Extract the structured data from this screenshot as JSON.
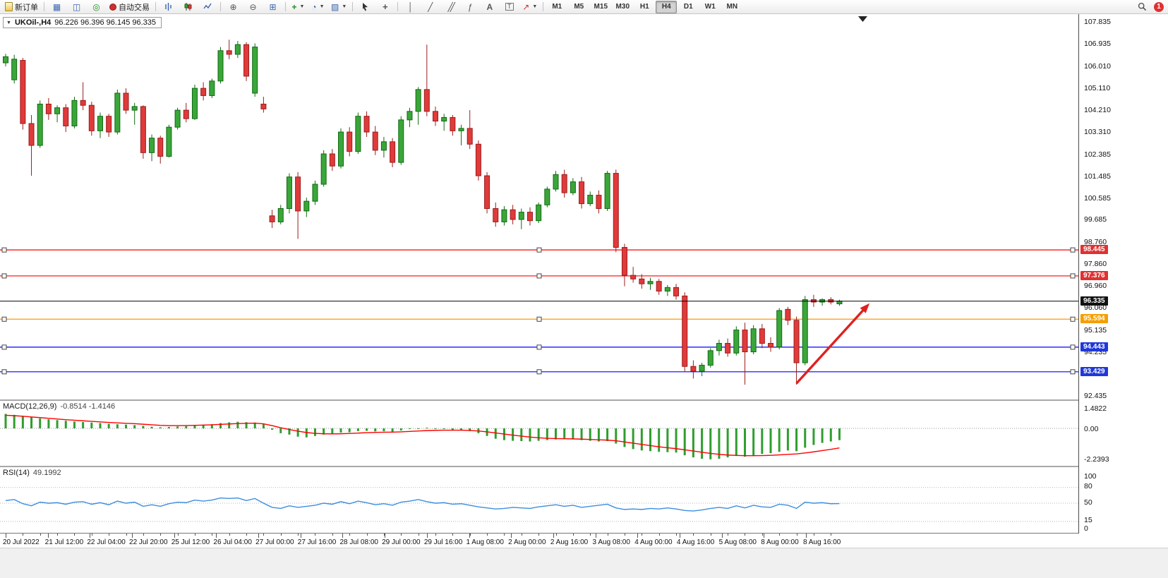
{
  "toolbar": {
    "new_order": "新订单",
    "autotrading": "自动交易",
    "timeframes": [
      "M1",
      "M5",
      "M15",
      "M30",
      "H1",
      "H4",
      "D1",
      "W1",
      "MN"
    ],
    "active_timeframe": "H4",
    "notification_badge": "1"
  },
  "chart_header": {
    "symbol": "UKOil-,H4",
    "ohlc": "96.226 96.396 96.145 96.335"
  },
  "indicators": {
    "macd": {
      "name": "MACD(12,26,9)",
      "values": "-0.8514 -1.4146",
      "axis_ticks": [
        "1.4822",
        "0.00",
        "-2.2393"
      ]
    },
    "rsi": {
      "name": "RSI(14)",
      "value": "49.1992",
      "axis_ticks": [
        "100",
        "80",
        "50",
        "15",
        "0"
      ]
    }
  },
  "price_axis": {
    "ticks": [
      "107.835",
      "106.935",
      "106.010",
      "105.110",
      "104.210",
      "103.310",
      "102.385",
      "101.485",
      "100.585",
      "99.685",
      "98.760",
      "97.860",
      "96.960",
      "96.060",
      "95.135",
      "94.235",
      "93.335",
      "92.435"
    ],
    "badges": [
      {
        "value": "98.445",
        "color": "#e03131"
      },
      {
        "value": "97.376",
        "color": "#e03131"
      },
      {
        "value": "96.335",
        "color": "#111111"
      },
      {
        "value": "95.594",
        "color": "#f59f00"
      },
      {
        "value": "94.443",
        "color": "#2038d8"
      },
      {
        "value": "93.429",
        "color": "#2038d8"
      }
    ]
  },
  "time_axis": [
    "20 Jul 2022",
    "21 Jul 12:00",
    "22 Jul 04:00",
    "22 Jul 20:00",
    "25 Jul 12:00",
    "26 Jul 04:00",
    "27 Jul 00:00",
    "27 Jul 16:00",
    "28 Jul 08:00",
    "29 Jul 00:00",
    "29 Jul 16:00",
    "1 Aug 08:00",
    "2 Aug 00:00",
    "2 Aug 16:00",
    "3 Aug 08:00",
    "4 Aug 00:00",
    "4 Aug 16:00",
    "5 Aug 08:00",
    "8 Aug 00:00",
    "8 Aug 16:00"
  ],
  "chart_data": {
    "type": "candlestick",
    "symbol": "UKOil-",
    "timeframe": "H4",
    "ohlc_display": {
      "open": 96.226,
      "high": 96.396,
      "low": 96.145,
      "close": 96.335
    },
    "price_range": [
      92.435,
      107.835
    ],
    "current_price": 96.335,
    "hlines": [
      {
        "price": 98.445,
        "color": "#ff0000"
      },
      {
        "price": 97.376,
        "color": "#ff0000"
      },
      {
        "price": 96.335,
        "color": "#000000",
        "current": true
      },
      {
        "price": 95.594,
        "color": "#ff9900"
      },
      {
        "price": 94.443,
        "color": "#0000ff"
      },
      {
        "price": 93.429,
        "color": "#0000ff"
      }
    ],
    "arrow": {
      "x1_bar": 92,
      "y1_price": 92.95,
      "x2_bar": 100.5,
      "y2_price": 96.25,
      "color": "#e02020"
    },
    "candles": [
      [
        106.15,
        106.52,
        106.0,
        106.4
      ],
      [
        105.45,
        106.48,
        105.3,
        106.3
      ],
      [
        106.25,
        106.35,
        103.4,
        103.65
      ],
      [
        103.65,
        104.0,
        101.5,
        102.75
      ],
      [
        102.75,
        104.6,
        102.65,
        104.45
      ],
      [
        104.45,
        104.7,
        103.8,
        104.05
      ],
      [
        104.05,
        104.4,
        103.7,
        104.3
      ],
      [
        104.3,
        104.45,
        103.3,
        103.55
      ],
      [
        103.55,
        104.75,
        103.45,
        104.6
      ],
      [
        104.6,
        105.35,
        104.2,
        104.4
      ],
      [
        104.4,
        104.55,
        103.15,
        103.35
      ],
      [
        103.35,
        104.1,
        103.05,
        103.95
      ],
      [
        103.95,
        104.05,
        103.1,
        103.3
      ],
      [
        103.3,
        105.05,
        103.2,
        104.9
      ],
      [
        104.9,
        105.1,
        104.05,
        104.2
      ],
      [
        104.2,
        104.5,
        103.6,
        104.35
      ],
      [
        104.35,
        104.4,
        102.2,
        102.45
      ],
      [
        102.45,
        103.2,
        102.1,
        103.05
      ],
      [
        103.05,
        103.15,
        102.0,
        102.3
      ],
      [
        102.3,
        103.6,
        102.25,
        103.5
      ],
      [
        103.5,
        104.3,
        103.4,
        104.2
      ],
      [
        104.2,
        104.5,
        103.7,
        103.85
      ],
      [
        103.85,
        105.25,
        103.8,
        105.1
      ],
      [
        105.1,
        105.35,
        104.6,
        104.8
      ],
      [
        104.8,
        105.5,
        104.7,
        105.4
      ],
      [
        105.4,
        106.8,
        105.3,
        106.65
      ],
      [
        106.65,
        107.1,
        106.3,
        106.5
      ],
      [
        106.5,
        107.05,
        106.35,
        106.9
      ],
      [
        106.9,
        107.0,
        105.4,
        105.6
      ],
      [
        104.9,
        106.95,
        104.75,
        106.8
      ],
      [
        104.45,
        104.75,
        104.1,
        104.25
      ],
      [
        99.85,
        100.1,
        99.35,
        99.6
      ],
      [
        99.6,
        100.3,
        99.5,
        100.15
      ],
      [
        100.15,
        101.6,
        99.95,
        101.45
      ],
      [
        101.45,
        101.65,
        98.9,
        100.05
      ],
      [
        100.05,
        100.6,
        99.8,
        100.45
      ],
      [
        100.45,
        101.3,
        100.3,
        101.15
      ],
      [
        101.15,
        102.55,
        101.05,
        102.4
      ],
      [
        102.4,
        102.6,
        101.7,
        101.9
      ],
      [
        101.9,
        103.45,
        101.8,
        103.3
      ],
      [
        103.3,
        103.5,
        102.3,
        102.5
      ],
      [
        102.5,
        104.1,
        102.4,
        103.95
      ],
      [
        103.95,
        104.15,
        103.1,
        103.3
      ],
      [
        103.3,
        103.55,
        102.35,
        102.55
      ],
      [
        102.55,
        103.1,
        102.25,
        102.9
      ],
      [
        102.9,
        103.05,
        101.85,
        102.05
      ],
      [
        102.05,
        103.95,
        101.95,
        103.8
      ],
      [
        103.8,
        104.3,
        103.5,
        104.15
      ],
      [
        104.15,
        105.15,
        103.6,
        105.05
      ],
      [
        105.05,
        106.9,
        103.95,
        104.15
      ],
      [
        104.15,
        104.35,
        103.55,
        103.75
      ],
      [
        103.75,
        104.05,
        103.35,
        103.9
      ],
      [
        103.9,
        104.0,
        103.15,
        103.35
      ],
      [
        103.35,
        103.6,
        102.75,
        103.45
      ],
      [
        103.45,
        104.2,
        102.6,
        102.8
      ],
      [
        102.8,
        102.95,
        101.3,
        101.5
      ],
      [
        101.5,
        101.65,
        99.95,
        100.15
      ],
      [
        100.15,
        100.4,
        99.4,
        99.6
      ],
      [
        99.6,
        100.25,
        99.45,
        100.1
      ],
      [
        100.1,
        100.3,
        99.5,
        99.7
      ],
      [
        99.7,
        100.15,
        99.3,
        100.0
      ],
      [
        100.0,
        100.2,
        99.45,
        99.65
      ],
      [
        99.65,
        100.4,
        99.55,
        100.3
      ],
      [
        100.3,
        101.05,
        100.2,
        100.95
      ],
      [
        100.95,
        101.7,
        100.85,
        101.55
      ],
      [
        101.55,
        101.75,
        100.6,
        100.8
      ],
      [
        100.8,
        101.4,
        100.7,
        101.25
      ],
      [
        101.25,
        101.45,
        100.15,
        100.35
      ],
      [
        100.35,
        100.85,
        100.25,
        100.7
      ],
      [
        100.7,
        100.9,
        99.95,
        100.15
      ],
      [
        100.15,
        101.7,
        100.05,
        101.6
      ],
      [
        101.6,
        101.75,
        98.35,
        98.55
      ],
      [
        98.55,
        98.7,
        96.95,
        97.4
      ],
      [
        97.4,
        97.75,
        97.1,
        97.25
      ],
      [
        97.25,
        97.45,
        96.85,
        97.05
      ],
      [
        97.05,
        97.3,
        96.8,
        97.15
      ],
      [
        97.15,
        97.25,
        96.6,
        96.75
      ],
      [
        96.75,
        97.0,
        96.55,
        96.9
      ],
      [
        96.9,
        97.05,
        96.4,
        96.55
      ],
      [
        96.55,
        96.7,
        93.45,
        93.65
      ],
      [
        93.65,
        93.9,
        93.15,
        93.45
      ],
      [
        93.45,
        93.8,
        93.25,
        93.7
      ],
      [
        93.7,
        94.4,
        93.6,
        94.3
      ],
      [
        94.3,
        94.75,
        94.1,
        94.6
      ],
      [
        94.6,
        94.8,
        94.05,
        94.2
      ],
      [
        94.2,
        95.3,
        94.1,
        95.15
      ],
      [
        95.15,
        95.45,
        92.9,
        94.25
      ],
      [
        94.25,
        95.35,
        94.15,
        95.2
      ],
      [
        95.2,
        95.4,
        94.4,
        94.6
      ],
      [
        94.6,
        94.85,
        94.25,
        94.45
      ],
      [
        94.45,
        96.05,
        94.35,
        95.95
      ],
      [
        96.0,
        96.1,
        95.35,
        95.55
      ],
      [
        95.55,
        95.7,
        92.9,
        93.8
      ],
      [
        93.8,
        96.55,
        93.7,
        96.4
      ],
      [
        96.4,
        96.6,
        96.1,
        96.3
      ],
      [
        96.3,
        96.45,
        96.15,
        96.4
      ],
      [
        96.4,
        96.5,
        96.2,
        96.3
      ],
      [
        96.226,
        96.396,
        96.145,
        96.335
      ]
    ],
    "macd": {
      "range": [
        -2.2393,
        1.4822
      ],
      "last_values": [
        -0.8514,
        -1.4146
      ],
      "histogram": [
        1.05,
        0.98,
        0.9,
        0.8,
        0.72,
        0.66,
        0.6,
        0.55,
        0.5,
        0.46,
        0.42,
        0.38,
        0.33,
        0.3,
        0.27,
        0.24,
        0.18,
        0.12,
        0.08,
        0.1,
        0.14,
        0.16,
        0.22,
        0.26,
        0.3,
        0.38,
        0.44,
        0.48,
        0.45,
        0.42,
        0.3,
        -0.1,
        -0.35,
        -0.45,
        -0.6,
        -0.65,
        -0.55,
        -0.45,
        -0.4,
        -0.3,
        -0.28,
        -0.2,
        -0.18,
        -0.22,
        -0.2,
        -0.25,
        -0.15,
        -0.05,
        0.0,
        0.05,
        0.0,
        -0.05,
        -0.1,
        -0.12,
        -0.2,
        -0.35,
        -0.55,
        -0.75,
        -0.85,
        -0.9,
        -0.92,
        -0.95,
        -0.9,
        -0.85,
        -0.8,
        -0.78,
        -0.8,
        -0.85,
        -0.9,
        -0.95,
        -0.92,
        -1.1,
        -1.35,
        -1.5,
        -1.6,
        -1.65,
        -1.7,
        -1.72,
        -1.75,
        -1.95,
        -2.1,
        -2.2,
        -2.24,
        -2.2,
        -2.1,
        -2.0,
        -2.05,
        -1.95,
        -1.85,
        -1.8,
        -1.7,
        -1.6,
        -1.65,
        -1.4,
        -1.2,
        -1.05,
        -0.95,
        -0.8514
      ],
      "signal": [
        0.95,
        0.92,
        0.88,
        0.83,
        0.78,
        0.73,
        0.68,
        0.63,
        0.59,
        0.55,
        0.51,
        0.47,
        0.43,
        0.4,
        0.37,
        0.34,
        0.3,
        0.26,
        0.22,
        0.2,
        0.2,
        0.21,
        0.22,
        0.24,
        0.26,
        0.29,
        0.32,
        0.35,
        0.37,
        0.38,
        0.33,
        0.2,
        0.05,
        -0.08,
        -0.2,
        -0.3,
        -0.36,
        -0.39,
        -0.4,
        -0.39,
        -0.37,
        -0.34,
        -0.31,
        -0.29,
        -0.28,
        -0.27,
        -0.25,
        -0.22,
        -0.19,
        -0.16,
        -0.14,
        -0.13,
        -0.13,
        -0.13,
        -0.15,
        -0.19,
        -0.25,
        -0.33,
        -0.41,
        -0.49,
        -0.56,
        -0.63,
        -0.68,
        -0.72,
        -0.74,
        -0.75,
        -0.76,
        -0.78,
        -0.8,
        -0.83,
        -0.85,
        -0.9,
        -0.98,
        -1.07,
        -1.16,
        -1.25,
        -1.33,
        -1.4,
        -1.47,
        -1.55,
        -1.64,
        -1.73,
        -1.81,
        -1.88,
        -1.93,
        -1.96,
        -1.98,
        -1.98,
        -1.97,
        -1.95,
        -1.92,
        -1.88,
        -1.85,
        -1.78,
        -1.7,
        -1.61,
        -1.52,
        -1.4146
      ]
    },
    "rsi": {
      "range": [
        0,
        100
      ],
      "levels": [
        80,
        50,
        15
      ],
      "last": 49.1992,
      "values": [
        55,
        57,
        49,
        45,
        52,
        50,
        51,
        48,
        52,
        53,
        48,
        51,
        47,
        54,
        50,
        52,
        44,
        47,
        44,
        49,
        52,
        51,
        56,
        54,
        56,
        60,
        59,
        60,
        55,
        59,
        50,
        42,
        40,
        45,
        42,
        44,
        46,
        50,
        48,
        53,
        49,
        54,
        51,
        47,
        49,
        46,
        52,
        54,
        57,
        53,
        50,
        51,
        48,
        49,
        46,
        43,
        41,
        39,
        40,
        42,
        41,
        40,
        43,
        45,
        47,
        44,
        46,
        42,
        44,
        46,
        48,
        41,
        38,
        39,
        38,
        40,
        39,
        41,
        39,
        36,
        35,
        37,
        40,
        42,
        40,
        45,
        41,
        46,
        43,
        42,
        48,
        46,
        40,
        52,
        50,
        51,
        49,
        49.1992
      ]
    },
    "colors": {
      "up_fill": "#3aa63a",
      "up_stroke": "#0f6b0f",
      "down_fill": "#e13a3a",
      "down_stroke": "#9b1d1d",
      "macd_hist": "#2f9e2f",
      "macd_signal": "#ff0000",
      "rsi_line": "#3b8ee0"
    }
  }
}
